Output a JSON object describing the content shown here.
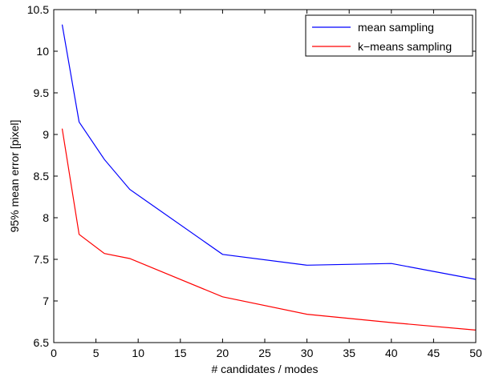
{
  "chart_data": {
    "type": "line",
    "title": "",
    "xlabel": "# candidates / modes",
    "ylabel": "95% mean error [pixel]",
    "xlim": [
      0,
      50
    ],
    "ylim": [
      6.5,
      10.5
    ],
    "xticks": [
      0,
      5,
      10,
      15,
      20,
      25,
      30,
      35,
      40,
      45,
      50
    ],
    "yticks": [
      6.5,
      7,
      7.5,
      8,
      8.5,
      9,
      9.5,
      10,
      10.5
    ],
    "grid": false,
    "legend_position": "top-right",
    "series": [
      {
        "name": "mean sampling",
        "color": "#0000ff",
        "x": [
          1,
          3,
          6,
          9,
          20,
          30,
          40,
          50
        ],
        "y": [
          10.32,
          9.15,
          8.7,
          8.34,
          7.56,
          7.43,
          7.45,
          7.26
        ]
      },
      {
        "name": "k−means sampling",
        "color": "#ff0000",
        "x": [
          1,
          3,
          6,
          9,
          20,
          30,
          40,
          50
        ],
        "y": [
          9.07,
          7.8,
          7.57,
          7.51,
          7.05,
          6.84,
          6.74,
          6.65
        ]
      }
    ]
  }
}
